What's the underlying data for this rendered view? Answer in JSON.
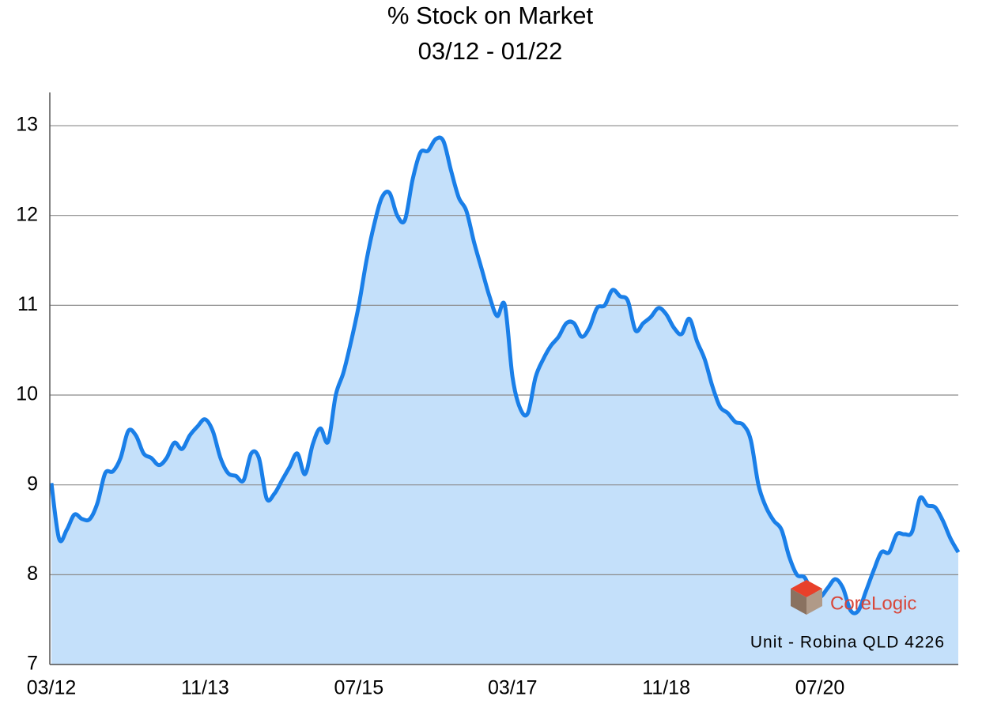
{
  "chart_data": {
    "type": "area",
    "title": "% Stock on Market",
    "subtitle": "03/12 - 01/22",
    "annotations": [
      "CoreLogic",
      "Unit - Robina QLD 4226"
    ],
    "categories": [
      "03/12",
      null,
      null,
      null,
      null,
      null,
      null,
      null,
      null,
      null,
      null,
      null,
      null,
      null,
      null,
      null,
      null,
      null,
      null,
      null,
      "11/13",
      null,
      null,
      null,
      null,
      null,
      null,
      null,
      null,
      null,
      null,
      null,
      null,
      null,
      null,
      null,
      null,
      null,
      null,
      null,
      "07/15",
      null,
      null,
      null,
      null,
      null,
      null,
      null,
      null,
      null,
      null,
      null,
      null,
      null,
      null,
      null,
      null,
      null,
      null,
      null,
      "03/17",
      null,
      null,
      null,
      null,
      null,
      null,
      null,
      null,
      null,
      null,
      null,
      null,
      null,
      null,
      null,
      null,
      null,
      null,
      null,
      "11/18",
      null,
      null,
      null,
      null,
      null,
      null,
      null,
      null,
      null,
      null,
      null,
      null,
      null,
      null,
      null,
      null,
      null,
      null,
      null,
      "07/20",
      null,
      null,
      null,
      null,
      null,
      null,
      null,
      null,
      null,
      null,
      null,
      null,
      null,
      null,
      null,
      null,
      null,
      null
    ],
    "values": [
      9.02,
      8.4,
      8.5,
      8.67,
      8.62,
      8.62,
      8.8,
      9.13,
      9.15,
      9.3,
      9.6,
      9.55,
      9.35,
      9.3,
      9.22,
      9.3,
      9.47,
      9.4,
      9.55,
      9.65,
      9.73,
      9.6,
      9.3,
      9.13,
      9.1,
      9.05,
      9.35,
      9.3,
      8.85,
      8.9,
      9.05,
      9.2,
      9.35,
      9.12,
      9.45,
      9.63,
      9.48,
      10.0,
      10.25,
      10.6,
      11.0,
      11.5,
      11.9,
      12.2,
      12.25,
      12.0,
      11.95,
      12.4,
      12.7,
      12.72,
      12.85,
      12.83,
      12.5,
      12.2,
      12.05,
      11.7,
      11.4,
      11.1,
      10.88,
      11.0,
      10.2,
      9.85,
      9.8,
      10.2,
      10.4,
      10.55,
      10.65,
      10.8,
      10.8,
      10.65,
      10.75,
      10.97,
      11.0,
      11.17,
      11.1,
      11.05,
      10.72,
      10.8,
      10.87,
      10.97,
      10.9,
      10.75,
      10.68,
      10.85,
      10.6,
      10.4,
      10.1,
      9.87,
      9.8,
      9.7,
      9.67,
      9.5,
      9.0,
      8.75,
      8.6,
      8.5,
      8.2,
      8.0,
      7.97,
      7.8,
      7.75,
      7.85,
      7.95,
      7.85,
      7.6,
      7.6,
      7.82,
      8.05,
      8.25,
      8.25,
      8.45,
      8.45,
      8.48,
      8.85,
      8.77,
      8.75,
      8.6,
      8.4,
      8.25
    ],
    "color": "#1a7fe8",
    "fill": "#c4e0fa",
    "ylim": [
      7,
      13.37
    ],
    "yticks": [
      7,
      8,
      9,
      10,
      11,
      12,
      13
    ],
    "grid": true
  }
}
